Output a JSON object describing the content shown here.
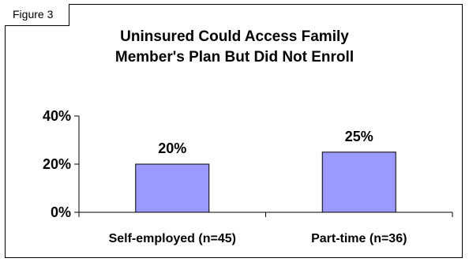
{
  "figure_label": "Figure 3",
  "chart_data": {
    "type": "bar",
    "title_lines": [
      "Uninsured Could Access Family",
      "Member's Plan But Did Not Enroll"
    ],
    "categories": [
      "Self-employed (n=45)",
      "Part-time (n=36)"
    ],
    "values": [
      20,
      25
    ],
    "data_labels": [
      "20%",
      "25%"
    ],
    "ylim": [
      0,
      40
    ],
    "yticks": [
      0,
      20,
      40
    ],
    "ytick_labels": [
      "0%",
      "20%",
      "40%"
    ],
    "grid": false,
    "legend": "none",
    "bar_color": "#9999ff",
    "bar_edge_color": "#000000"
  }
}
